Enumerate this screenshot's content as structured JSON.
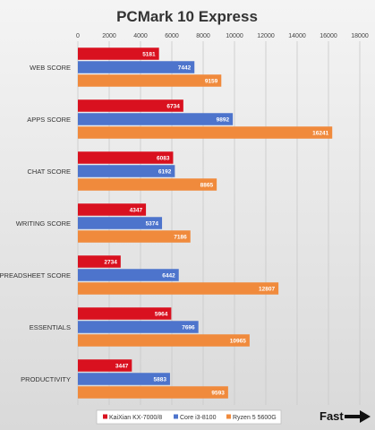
{
  "chart_data": {
    "type": "bar",
    "orientation": "horizontal",
    "title": "PCMark 10 Express",
    "categories": [
      "WEB SCORE",
      "APPS SCORE",
      "CHAT SCORE",
      "WRITING SCORE",
      "SPREADSHEET SCORE",
      "ESSENTIALS",
      "PRODUCTIVITY"
    ],
    "series": [
      {
        "name": "KaiXian KX-7000/8",
        "color": "#d9111f",
        "values": [
          5181,
          6734,
          6083,
          4347,
          2734,
          5964,
          3447
        ]
      },
      {
        "name": "Core i3-8100",
        "color": "#4d74cc",
        "values": [
          7442,
          9892,
          6192,
          5374,
          6442,
          7696,
          5883
        ]
      },
      {
        "name": "Ryzen 5 5600G",
        "color": "#f08a3c",
        "values": [
          9159,
          16241,
          8865,
          7186,
          12807,
          10965,
          9593
        ]
      }
    ],
    "xlim": [
      0,
      18000
    ],
    "xticks": [
      0,
      2000,
      4000,
      6000,
      8000,
      10000,
      12000,
      14000,
      16000,
      18000
    ],
    "axis_position": "top",
    "grid": true,
    "legend_position": "bottom",
    "annotation": "Fast"
  }
}
